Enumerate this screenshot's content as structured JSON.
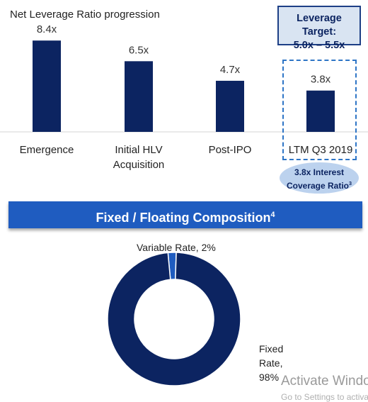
{
  "chart_data": [
    {
      "type": "bar",
      "title": "Net Leverage Ratio progression",
      "categories": [
        "Emergence",
        "Initial HLV\nAcquisition",
        "Post-IPO",
        "LTM Q3 2019"
      ],
      "values": [
        8.4,
        6.5,
        4.7,
        3.8
      ],
      "value_labels": [
        "8.4x",
        "6.5x",
        "4.7x",
        "3.8x"
      ],
      "ylim": [
        0,
        9
      ],
      "grid": false,
      "bar_color": "#0c2461",
      "callout": {
        "title": "Leverage Target:",
        "range": "5.0x – 5.5x"
      },
      "highlight_category": "LTM Q3 2019",
      "annotation": {
        "text_line1": "3.8x Interest",
        "text_line2": "Coverage Ratio",
        "footnote": "3"
      }
    },
    {
      "type": "pie",
      "style": "donut",
      "title": "Fixed / Floating Composition",
      "title_footnote": "4",
      "slices": [
        {
          "label": "Variable Rate, 2%",
          "value": 2,
          "color": "#1f5cc0"
        },
        {
          "label": "Fixed Rate, 98%",
          "value": 98,
          "color": "#0c2461"
        }
      ]
    }
  ],
  "watermark": {
    "line1": "Activate Windows",
    "line2": "Go to Settings to activate Windows."
  }
}
